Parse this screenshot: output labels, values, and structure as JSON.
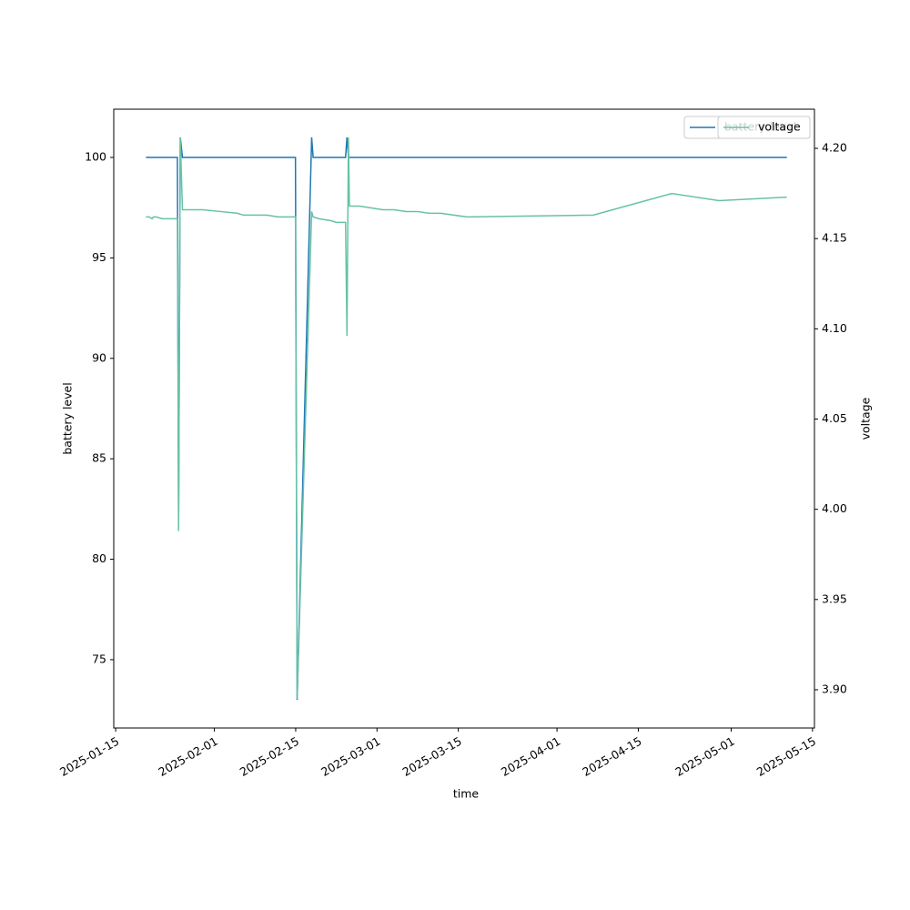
{
  "chart_data": {
    "type": "line",
    "xlabel": "time",
    "ylabel": "battery level",
    "y2label": "voltage",
    "xlim": [
      "2025-01-14T16:00",
      "2025-05-15T08:00"
    ],
    "xticks": [
      "2025-01-15",
      "2025-02-01",
      "2025-02-15",
      "2025-03-01",
      "2025-03-15",
      "2025-04-01",
      "2025-04-15",
      "2025-05-01",
      "2025-05-15"
    ],
    "ylim": [
      71.6,
      102.4
    ],
    "yticks": [
      75,
      80,
      85,
      90,
      95,
      100
    ],
    "y2lim": [
      3.8788,
      4.2217
    ],
    "y2ticks": [
      {
        "value": 3.9,
        "label": "3.90"
      },
      {
        "value": 3.95,
        "label": "3.95"
      },
      {
        "value": 4.0,
        "label": "4.00"
      },
      {
        "value": 4.05,
        "label": "4.05"
      },
      {
        "value": 4.1,
        "label": "4.10"
      },
      {
        "value": 4.15,
        "label": "4.15"
      },
      {
        "value": 4.2,
        "label": "4.20"
      }
    ],
    "legend": "upper right",
    "series": [
      {
        "name": "battery level",
        "color": "#1f77b4",
        "axis": "y",
        "x": [
          "2025-01-20T05:00",
          "2025-01-25T15:00",
          "2025-01-25T20:00",
          "2025-01-26T03:00",
          "2025-01-26T12:00",
          "2025-02-14T23:00",
          "2025-02-15T06:00",
          "2025-02-17T18:00",
          "2025-02-18T00:00",
          "2025-02-23T14:00",
          "2025-02-23T20:00",
          "2025-02-24T02:00",
          "2025-05-10T14:00"
        ],
        "values": [
          100,
          100,
          82,
          101,
          100,
          100,
          73,
          101,
          100,
          100,
          101,
          100,
          100
        ]
      },
      {
        "name": "voltage",
        "color": "#66c2a5",
        "axis": "y2",
        "x": [
          "2025-01-20T05:00",
          "2025-01-20T18:00",
          "2025-01-21T06:00",
          "2025-01-21T12:00",
          "2025-01-22T00:00",
          "2025-01-23T00:00",
          "2025-01-24T00:00",
          "2025-01-25T00:00",
          "2025-01-25T15:00",
          "2025-01-25T20:00",
          "2025-01-26T03:00",
          "2025-01-26T12:00",
          "2025-01-29T00:00",
          "2025-01-30T00:00",
          "2025-02-02T00:00",
          "2025-02-05T00:00",
          "2025-02-06T00:00",
          "2025-02-08T00:00",
          "2025-02-10T00:00",
          "2025-02-12T00:00",
          "2025-02-14T00:00",
          "2025-02-14T23:00",
          "2025-02-15T06:00",
          "2025-02-17T18:00",
          "2025-02-18T00:00",
          "2025-02-19T00:00",
          "2025-02-21T00:00",
          "2025-02-22T00:00",
          "2025-02-23T14:00",
          "2025-02-23T20:00",
          "2025-02-24T02:00",
          "2025-02-24T06:00",
          "2025-02-26T00:00",
          "2025-02-28T00:00",
          "2025-03-02T00:00",
          "2025-03-04T00:00",
          "2025-03-06T00:00",
          "2025-03-08T00:00",
          "2025-03-10T00:00",
          "2025-03-12T00:00",
          "2025-03-16T12:00",
          "2025-04-07T06:00",
          "2025-04-20T18:00",
          "2025-04-28T22:00",
          "2025-05-10T14:00"
        ],
        "values": [
          4.162,
          4.162,
          4.161,
          4.162,
          4.162,
          4.161,
          4.161,
          4.161,
          4.161,
          3.988,
          4.206,
          4.166,
          4.166,
          4.166,
          4.165,
          4.164,
          4.163,
          4.163,
          4.163,
          4.162,
          4.162,
          4.162,
          3.895,
          4.165,
          4.162,
          4.161,
          4.16,
          4.159,
          4.159,
          4.096,
          4.206,
          4.168,
          4.168,
          4.167,
          4.166,
          4.166,
          4.165,
          4.165,
          4.164,
          4.164,
          4.162,
          4.163,
          4.175,
          4.171,
          4.173
        ]
      }
    ]
  }
}
